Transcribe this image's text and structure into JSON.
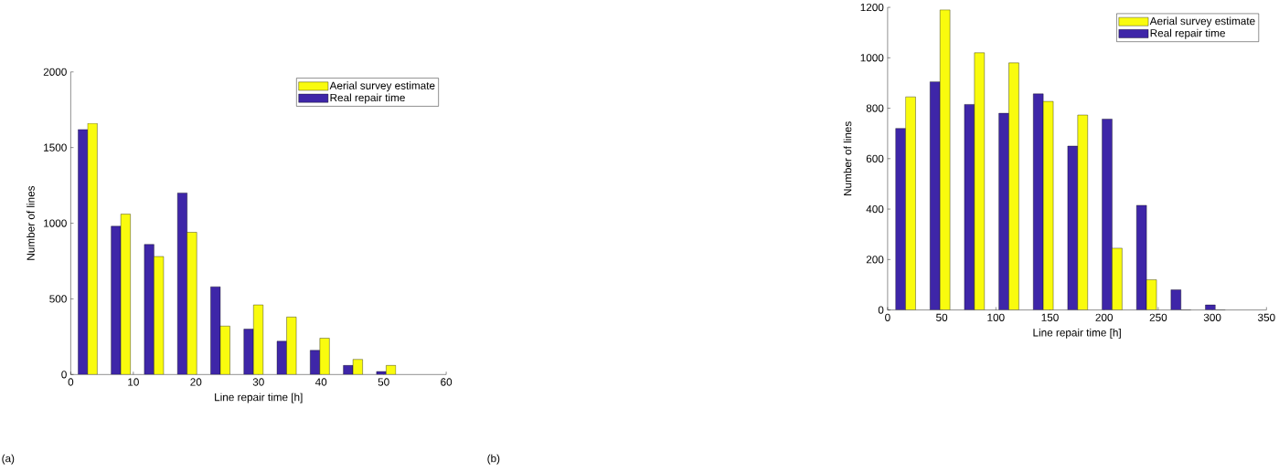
{
  "chart_data": [
    {
      "type": "bar",
      "xlabel": "Line repair time [h]",
      "ylabel": "Number of lines",
      "annotations": [
        "(a)"
      ],
      "legend": "top right",
      "x": [
        2.7,
        8.0,
        13.3,
        18.6,
        23.9,
        29.2,
        34.5,
        39.8,
        45.1,
        50.4
      ],
      "series": [
        {
          "name": "Real repair time",
          "color": "#3e26a8",
          "values": [
            1620,
            980,
            860,
            1200,
            580,
            300,
            220,
            160,
            60,
            20
          ]
        },
        {
          "name": "Aerial survey estimate",
          "color": "#f9fb0e",
          "values": [
            1660,
            1060,
            780,
            940,
            320,
            460,
            380,
            240,
            100,
            60
          ]
        }
      ],
      "xlim": [
        0,
        60
      ],
      "ylim": [
        0,
        2000
      ],
      "xticks": [
        0,
        10,
        20,
        30,
        40,
        50,
        60
      ],
      "yticks": [
        0,
        500,
        1000,
        1500,
        2000
      ]
    },
    {
      "type": "bar",
      "xlabel": "Line repair time [h]",
      "ylabel": "Number of lines",
      "annotations": [
        "(b)"
      ],
      "legend": "top right",
      "x": [
        16.6,
        48.4,
        80.2,
        112.0,
        143.8,
        175.6,
        207.4,
        239.2,
        271.0,
        302.8
      ],
      "series": [
        {
          "name": "Real repair time",
          "color": "#3e26a8",
          "values": [
            720,
            905,
            815,
            780,
            857,
            650,
            757,
            415,
            80,
            20
          ]
        },
        {
          "name": "Aerial survey estimate",
          "color": "#f9fb0e",
          "values": [
            845,
            1190,
            1020,
            980,
            827,
            773,
            245,
            120,
            0,
            0
          ]
        }
      ],
      "xlim": [
        0,
        350
      ],
      "ylim": [
        0,
        1200
      ],
      "xticks": [
        0,
        50,
        100,
        150,
        200,
        250,
        300,
        350
      ],
      "yticks": [
        0,
        200,
        400,
        600,
        800,
        1000,
        1200
      ]
    }
  ]
}
